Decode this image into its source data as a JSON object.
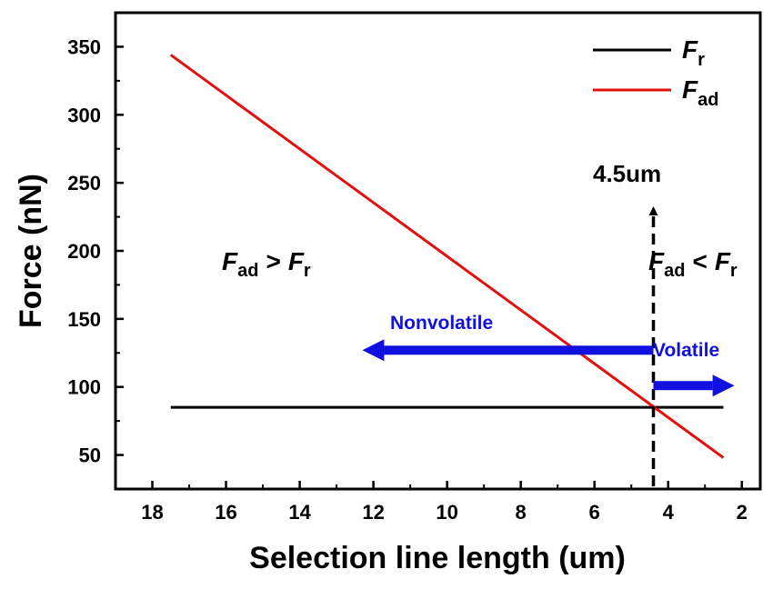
{
  "chart_data": {
    "type": "line",
    "xlabel": "Selection line length (um)",
    "ylabel": "Force (nN)",
    "xlim": [
      19,
      1.5
    ],
    "ylim": [
      25,
      375
    ],
    "xticks": [
      18,
      16,
      14,
      12,
      10,
      8,
      6,
      4,
      2
    ],
    "yticks": [
      50,
      100,
      150,
      200,
      250,
      300,
      350
    ],
    "grid": false,
    "legend_position": "top-right",
    "series": [
      {
        "name": "F",
        "subscript": "r",
        "color": "#000000",
        "x": [
          17.5,
          2.5
        ],
        "y": [
          85,
          85
        ]
      },
      {
        "name": "F",
        "subscript": "ad",
        "color": "#e01010",
        "x": [
          17.5,
          2.5
        ],
        "y": [
          344,
          48
        ]
      }
    ],
    "marker": {
      "label": "4.5um",
      "x": 4.4
    },
    "annotations": {
      "left_region": {
        "F1": "F",
        "sub1": "ad",
        "op": ">",
        "F2": "F",
        "sub2": "r"
      },
      "right_region": {
        "F1": "F",
        "sub1": "ad",
        "op": "<",
        "F2": "F",
        "sub2": "r"
      },
      "nonvolatile": {
        "label": "Nonvolatile",
        "color": "#1010e0",
        "from_x": 4.4,
        "to_x": 12.3,
        "y": 127
      },
      "volatile": {
        "label": "Volatile",
        "color": "#1010e0",
        "from_x": 4.4,
        "to_x": 2.2,
        "y": 101
      }
    }
  }
}
